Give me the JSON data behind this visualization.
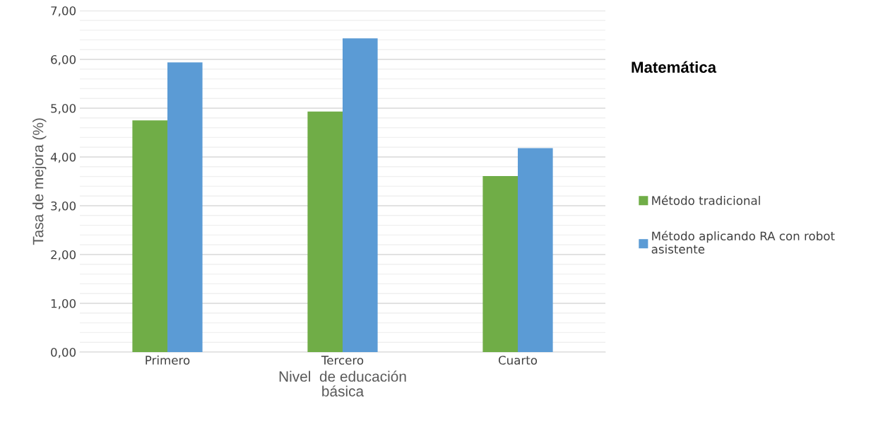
{
  "chart_data": {
    "type": "bar",
    "title": "Matemática",
    "xlabel": "Nivel  de educación\nbásica",
    "ylabel": "Tasa de mejora (%)",
    "categories": [
      "Primero",
      "Tercero",
      "Cuarto"
    ],
    "series": [
      {
        "name": "Método tradicional",
        "color": "#70ad47",
        "values": [
          4.75,
          4.93,
          3.61
        ]
      },
      {
        "name": "Método aplicando RA con robot asistente",
        "color": "#5b9bd5",
        "values": [
          5.94,
          6.43,
          4.18
        ]
      }
    ],
    "ylim": [
      0,
      7
    ],
    "yticks": [
      {
        "value": 0,
        "label": "0,00"
      },
      {
        "value": 0.2,
        "label": null
      },
      {
        "value": 0.4,
        "label": null
      },
      {
        "value": 0.6,
        "label": null
      },
      {
        "value": 0.8,
        "label": null
      },
      {
        "value": 1,
        "label": "1,00"
      },
      {
        "value": 1.2,
        "label": null
      },
      {
        "value": 1.4,
        "label": null
      },
      {
        "value": 1.6,
        "label": null
      },
      {
        "value": 1.8,
        "label": null
      },
      {
        "value": 2,
        "label": "2,00"
      },
      {
        "value": 2.2,
        "label": null
      },
      {
        "value": 2.4,
        "label": null
      },
      {
        "value": 2.6,
        "label": null
      },
      {
        "value": 2.8,
        "label": null
      },
      {
        "value": 3,
        "label": "3,00"
      },
      {
        "value": 3.2,
        "label": null
      },
      {
        "value": 3.4,
        "label": null
      },
      {
        "value": 3.6,
        "label": null
      },
      {
        "value": 3.8,
        "label": null
      },
      {
        "value": 4,
        "label": "4,00"
      },
      {
        "value": 4.2,
        "label": null
      },
      {
        "value": 4.4,
        "label": null
      },
      {
        "value": 4.6,
        "label": null
      },
      {
        "value": 4.8,
        "label": null
      },
      {
        "value": 5,
        "label": "5,00"
      },
      {
        "value": 5.2,
        "label": null
      },
      {
        "value": 5.4,
        "label": null
      },
      {
        "value": 5.6,
        "label": null
      },
      {
        "value": 5.8,
        "label": null
      },
      {
        "value": 6,
        "label": "6,00"
      },
      {
        "value": 6.2,
        "label": null
      },
      {
        "value": 6.4,
        "label": null
      },
      {
        "value": 6.6,
        "label": null
      },
      {
        "value": 6.8,
        "label": null
      },
      {
        "value": 7,
        "label": "7,00"
      }
    ],
    "grid": "y",
    "legend": "right"
  }
}
